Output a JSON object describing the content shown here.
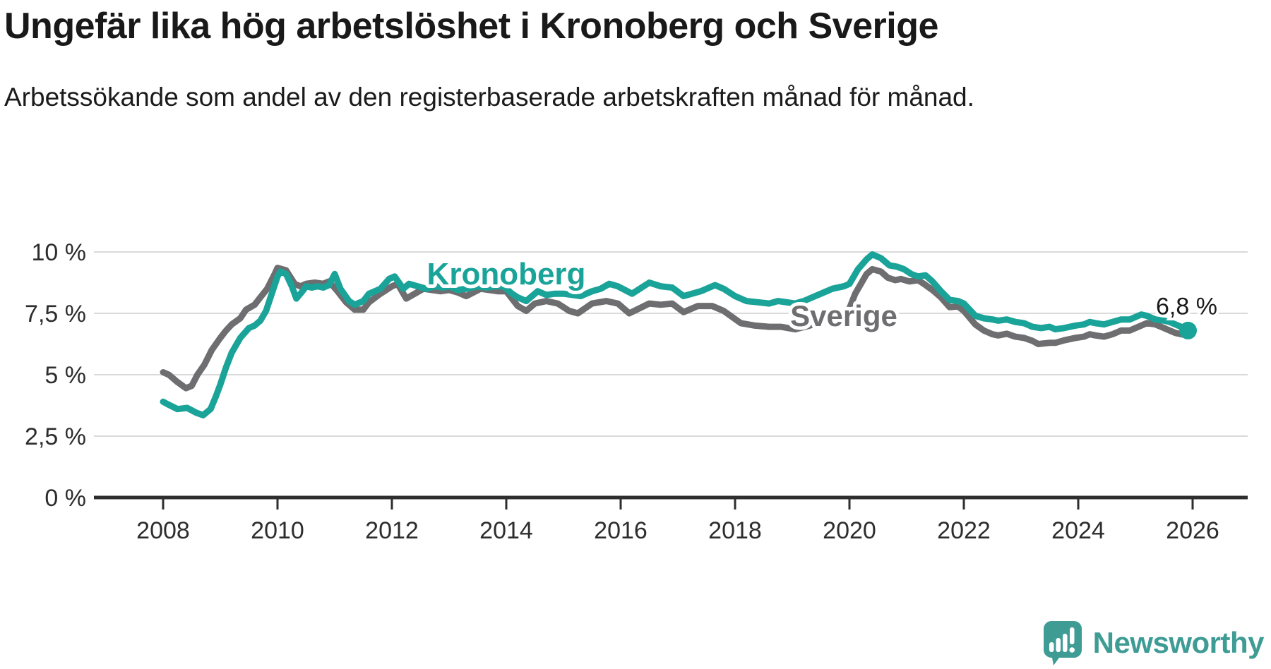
{
  "header": {
    "title": "Ungefär lika hög arbetslöshet i Kronoberg och Sverige",
    "subtitle": "Arbetssökande som andel av den registerbaserade arbetskraften månad för månad."
  },
  "chart_data": {
    "type": "line",
    "unit": "%",
    "grid": "horizontal-only",
    "legend_position": "inline-labels",
    "y_axis": {
      "lim": [
        0,
        10.4
      ],
      "ticks": [
        {
          "value": 0,
          "label": "0 %"
        },
        {
          "value": 2.5,
          "label": "2,5 %"
        },
        {
          "value": 5,
          "label": "5 %"
        },
        {
          "value": 7.5,
          "label": "7,5 %"
        },
        {
          "value": 10,
          "label": "10 %"
        }
      ]
    },
    "x_axis": {
      "lim": [
        2006.8,
        2026.9
      ],
      "ticks": [
        {
          "value": 2008,
          "label": "2008"
        },
        {
          "value": 2010,
          "label": "2010"
        },
        {
          "value": 2012,
          "label": "2012"
        },
        {
          "value": 2014,
          "label": "2014"
        },
        {
          "value": 2016,
          "label": "2016"
        },
        {
          "value": 2018,
          "label": "2018"
        },
        {
          "value": 2020,
          "label": "2020"
        },
        {
          "value": 2022,
          "label": "2022"
        },
        {
          "value": 2024,
          "label": "2024"
        },
        {
          "value": 2026,
          "label": "2026"
        }
      ]
    },
    "series": [
      {
        "name": "Sverige",
        "color": "#6e6e71",
        "points": [
          [
            2008.0,
            5.1
          ],
          [
            2008.1,
            5.0
          ],
          [
            2008.25,
            4.7
          ],
          [
            2008.4,
            4.45
          ],
          [
            2008.5,
            4.55
          ],
          [
            2008.6,
            5.0
          ],
          [
            2008.72,
            5.4
          ],
          [
            2008.85,
            6.0
          ],
          [
            2009.0,
            6.5
          ],
          [
            2009.1,
            6.8
          ],
          [
            2009.2,
            7.05
          ],
          [
            2009.35,
            7.3
          ],
          [
            2009.45,
            7.65
          ],
          [
            2009.6,
            7.85
          ],
          [
            2009.7,
            8.15
          ],
          [
            2009.82,
            8.5
          ],
          [
            2009.95,
            9.1
          ],
          [
            2010.0,
            9.35
          ],
          [
            2010.15,
            9.25
          ],
          [
            2010.3,
            8.7
          ],
          [
            2010.4,
            8.6
          ],
          [
            2010.5,
            8.7
          ],
          [
            2010.65,
            8.75
          ],
          [
            2010.8,
            8.7
          ],
          [
            2010.9,
            8.8
          ],
          [
            2011.05,
            8.4
          ],
          [
            2011.2,
            7.95
          ],
          [
            2011.35,
            7.65
          ],
          [
            2011.5,
            7.65
          ],
          [
            2011.6,
            7.95
          ],
          [
            2011.8,
            8.3
          ],
          [
            2012.0,
            8.6
          ],
          [
            2012.1,
            8.7
          ],
          [
            2012.25,
            8.1
          ],
          [
            2012.4,
            8.3
          ],
          [
            2012.55,
            8.5
          ],
          [
            2012.7,
            8.45
          ],
          [
            2012.85,
            8.4
          ],
          [
            2013.0,
            8.45
          ],
          [
            2013.15,
            8.35
          ],
          [
            2013.3,
            8.2
          ],
          [
            2013.55,
            8.5
          ],
          [
            2013.7,
            8.45
          ],
          [
            2013.85,
            8.4
          ],
          [
            2014.0,
            8.4
          ],
          [
            2014.2,
            7.8
          ],
          [
            2014.35,
            7.6
          ],
          [
            2014.5,
            7.9
          ],
          [
            2014.7,
            8.0
          ],
          [
            2014.9,
            7.9
          ],
          [
            2015.1,
            7.6
          ],
          [
            2015.25,
            7.5
          ],
          [
            2015.5,
            7.9
          ],
          [
            2015.75,
            8.0
          ],
          [
            2015.95,
            7.9
          ],
          [
            2016.15,
            7.5
          ],
          [
            2016.5,
            7.9
          ],
          [
            2016.7,
            7.85
          ],
          [
            2016.9,
            7.9
          ],
          [
            2017.1,
            7.55
          ],
          [
            2017.35,
            7.8
          ],
          [
            2017.6,
            7.8
          ],
          [
            2017.8,
            7.6
          ],
          [
            2018.1,
            7.1
          ],
          [
            2018.35,
            7.0
          ],
          [
            2018.6,
            6.95
          ],
          [
            2018.8,
            6.95
          ],
          [
            2019.05,
            6.85
          ],
          [
            2019.3,
            7.0
          ],
          [
            2019.6,
            7.2
          ],
          [
            2019.85,
            7.45
          ],
          [
            2020.0,
            7.7
          ],
          [
            2020.1,
            8.3
          ],
          [
            2020.3,
            9.1
          ],
          [
            2020.4,
            9.3
          ],
          [
            2020.55,
            9.2
          ],
          [
            2020.67,
            8.95
          ],
          [
            2020.8,
            8.85
          ],
          [
            2020.9,
            8.9
          ],
          [
            2021.05,
            8.8
          ],
          [
            2021.2,
            8.85
          ],
          [
            2021.3,
            8.7
          ],
          [
            2021.45,
            8.45
          ],
          [
            2021.6,
            8.15
          ],
          [
            2021.75,
            7.75
          ],
          [
            2021.9,
            7.78
          ],
          [
            2022.0,
            7.6
          ],
          [
            2022.2,
            7.05
          ],
          [
            2022.35,
            6.8
          ],
          [
            2022.5,
            6.65
          ],
          [
            2022.6,
            6.6
          ],
          [
            2022.75,
            6.67
          ],
          [
            2022.9,
            6.55
          ],
          [
            2023.05,
            6.5
          ],
          [
            2023.2,
            6.38
          ],
          [
            2023.3,
            6.25
          ],
          [
            2023.5,
            6.3
          ],
          [
            2023.6,
            6.3
          ],
          [
            2023.75,
            6.4
          ],
          [
            2023.95,
            6.5
          ],
          [
            2024.1,
            6.55
          ],
          [
            2024.2,
            6.65
          ],
          [
            2024.3,
            6.6
          ],
          [
            2024.45,
            6.55
          ],
          [
            2024.6,
            6.65
          ],
          [
            2024.75,
            6.8
          ],
          [
            2024.9,
            6.8
          ],
          [
            2025.0,
            6.9
          ],
          [
            2025.1,
            7.0
          ],
          [
            2025.2,
            7.1
          ],
          [
            2025.35,
            7.05
          ],
          [
            2025.5,
            6.9
          ],
          [
            2025.6,
            6.8
          ],
          [
            2025.7,
            6.7
          ],
          [
            2025.8,
            6.65
          ],
          [
            2025.92,
            6.6
          ]
        ]
      },
      {
        "name": "Kronoberg",
        "color": "#1aa398",
        "points": [
          [
            2008.0,
            3.9
          ],
          [
            2008.08,
            3.8
          ],
          [
            2008.25,
            3.6
          ],
          [
            2008.42,
            3.65
          ],
          [
            2008.58,
            3.45
          ],
          [
            2008.7,
            3.35
          ],
          [
            2008.83,
            3.6
          ],
          [
            2008.92,
            4.1
          ],
          [
            2009.0,
            4.6
          ],
          [
            2009.1,
            5.3
          ],
          [
            2009.2,
            5.9
          ],
          [
            2009.35,
            6.5
          ],
          [
            2009.5,
            6.9
          ],
          [
            2009.6,
            7.0
          ],
          [
            2009.7,
            7.2
          ],
          [
            2009.8,
            7.6
          ],
          [
            2009.9,
            8.3
          ],
          [
            2010.0,
            9.0
          ],
          [
            2010.05,
            9.2
          ],
          [
            2010.15,
            9.1
          ],
          [
            2010.25,
            8.6
          ],
          [
            2010.33,
            8.1
          ],
          [
            2010.42,
            8.35
          ],
          [
            2010.5,
            8.6
          ],
          [
            2010.6,
            8.55
          ],
          [
            2010.7,
            8.6
          ],
          [
            2010.8,
            8.55
          ],
          [
            2010.9,
            8.65
          ],
          [
            2011.0,
            9.1
          ],
          [
            2011.1,
            8.5
          ],
          [
            2011.25,
            8.0
          ],
          [
            2011.35,
            7.85
          ],
          [
            2011.5,
            8.0
          ],
          [
            2011.6,
            8.3
          ],
          [
            2011.8,
            8.5
          ],
          [
            2011.95,
            8.9
          ],
          [
            2012.05,
            9.0
          ],
          [
            2012.2,
            8.5
          ],
          [
            2012.3,
            8.7
          ],
          [
            2012.45,
            8.6
          ],
          [
            2012.6,
            8.5
          ],
          [
            2012.75,
            8.6
          ],
          [
            2012.9,
            8.55
          ],
          [
            2013.0,
            8.6
          ],
          [
            2013.15,
            8.45
          ],
          [
            2013.3,
            8.5
          ],
          [
            2013.5,
            8.6
          ],
          [
            2013.65,
            8.55
          ],
          [
            2013.8,
            8.6
          ],
          [
            2013.95,
            8.6
          ],
          [
            2014.1,
            8.3
          ],
          [
            2014.2,
            8.15
          ],
          [
            2014.35,
            8.0
          ],
          [
            2014.55,
            8.4
          ],
          [
            2014.7,
            8.25
          ],
          [
            2014.85,
            8.3
          ],
          [
            2015.0,
            8.3
          ],
          [
            2015.3,
            8.2
          ],
          [
            2015.5,
            8.4
          ],
          [
            2015.65,
            8.5
          ],
          [
            2015.8,
            8.7
          ],
          [
            2015.95,
            8.6
          ],
          [
            2016.2,
            8.3
          ],
          [
            2016.5,
            8.75
          ],
          [
            2016.7,
            8.6
          ],
          [
            2016.9,
            8.55
          ],
          [
            2017.1,
            8.2
          ],
          [
            2017.4,
            8.4
          ],
          [
            2017.65,
            8.65
          ],
          [
            2017.8,
            8.5
          ],
          [
            2018.0,
            8.2
          ],
          [
            2018.2,
            8.0
          ],
          [
            2018.4,
            7.95
          ],
          [
            2018.6,
            7.9
          ],
          [
            2018.75,
            8.0
          ],
          [
            2018.9,
            7.95
          ],
          [
            2019.05,
            7.9
          ],
          [
            2019.2,
            8.0
          ],
          [
            2019.35,
            8.15
          ],
          [
            2019.5,
            8.3
          ],
          [
            2019.7,
            8.5
          ],
          [
            2019.9,
            8.6
          ],
          [
            2020.0,
            8.7
          ],
          [
            2020.15,
            9.3
          ],
          [
            2020.3,
            9.7
          ],
          [
            2020.4,
            9.9
          ],
          [
            2020.55,
            9.75
          ],
          [
            2020.7,
            9.45
          ],
          [
            2020.83,
            9.4
          ],
          [
            2020.95,
            9.3
          ],
          [
            2021.08,
            9.1
          ],
          [
            2021.2,
            9.0
          ],
          [
            2021.33,
            9.05
          ],
          [
            2021.45,
            8.8
          ],
          [
            2021.6,
            8.4
          ],
          [
            2021.75,
            8.05
          ],
          [
            2021.9,
            8.0
          ],
          [
            2022.0,
            7.9
          ],
          [
            2022.2,
            7.4
          ],
          [
            2022.35,
            7.3
          ],
          [
            2022.5,
            7.25
          ],
          [
            2022.6,
            7.2
          ],
          [
            2022.75,
            7.25
          ],
          [
            2022.9,
            7.15
          ],
          [
            2023.05,
            7.1
          ],
          [
            2023.2,
            6.95
          ],
          [
            2023.35,
            6.9
          ],
          [
            2023.5,
            6.95
          ],
          [
            2023.6,
            6.85
          ],
          [
            2023.75,
            6.9
          ],
          [
            2023.95,
            7.0
          ],
          [
            2024.1,
            7.05
          ],
          [
            2024.2,
            7.15
          ],
          [
            2024.3,
            7.1
          ],
          [
            2024.45,
            7.05
          ],
          [
            2024.6,
            7.15
          ],
          [
            2024.75,
            7.25
          ],
          [
            2024.9,
            7.25
          ],
          [
            2025.0,
            7.35
          ],
          [
            2025.1,
            7.45
          ],
          [
            2025.2,
            7.4
          ],
          [
            2025.35,
            7.25
          ],
          [
            2025.5,
            7.2
          ],
          [
            2025.6,
            7.15
          ],
          [
            2025.7,
            7.05
          ],
          [
            2025.8,
            6.95
          ],
          [
            2025.92,
            6.8
          ]
        ]
      }
    ],
    "inline_labels": [
      {
        "series": "Kronoberg",
        "text": "Kronoberg"
      },
      {
        "series": "Sverige",
        "text": "Sverige"
      }
    ],
    "end_label": {
      "text": "6,8 %",
      "value": 6.8,
      "series": "Kronoberg"
    }
  },
  "footer": {
    "brand": "Newsworthy"
  }
}
